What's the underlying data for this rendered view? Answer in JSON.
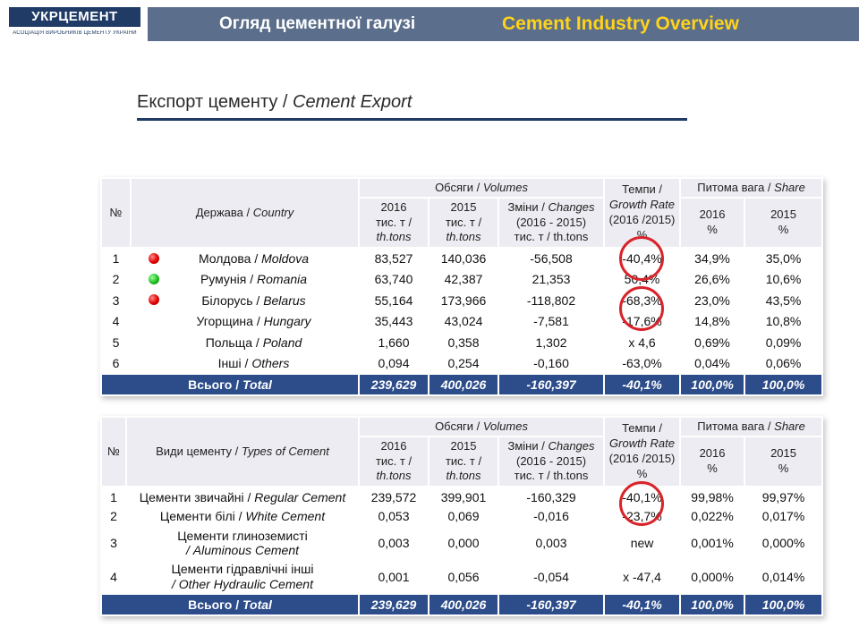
{
  "header": {
    "logo_title": "УКРЦЕМЕНТ",
    "logo_subtitle": "АСОЦІАЦІЯ ВИРОБНИКІВ ЦЕМЕНТУ УКРАЇНИ",
    "title_ua": "Огляд цементної галузі",
    "title_en": "Cement Industry Overview",
    "title_en_color": "#ffd31a"
  },
  "section": {
    "title_ua": "Експорт цементу / ",
    "title_en": "Cement Export"
  },
  "common": {
    "no": "№",
    "volumes_ua": "Обсяги / ",
    "volumes_en": "Volumes",
    "y2016": "2016",
    "y2015": "2015",
    "unit_ua": "тис. т /",
    "unit_en": "th.tons",
    "changes_ua": "Зміни / ",
    "changes_en": "Changes",
    "changes_period": "(2016 - 2015)",
    "changes_unit": "тис. т / th.tons",
    "rate_ua": "Темпи /",
    "rate_en": "Growth Rate",
    "rate_period": "(2016 /2015)",
    "pct": "%",
    "share_ua": "Питома вага / ",
    "share_en": "Share",
    "y2016_pct": "2016",
    "y2015_pct": "2015"
  },
  "table1": {
    "col_label_ua": "Держава / ",
    "col_label_en": "Country",
    "rows": [
      {
        "n": "1",
        "ua": "Молдова / ",
        "en": "Moldova",
        "v2016": "83,527",
        "v2015": "140,036",
        "chg": "-56,508",
        "rate": "-40,4%",
        "s2016": "34,9%",
        "s2015": "35,0%",
        "dot": "red"
      },
      {
        "n": "2",
        "ua": "Румунія / ",
        "en": "Romania",
        "v2016": "63,740",
        "v2015": "42,387",
        "chg": "21,353",
        "rate": "50,4%",
        "s2016": "26,6%",
        "s2015": "10,6%",
        "dot": "green"
      },
      {
        "n": "3",
        "ua": "Білорусь / ",
        "en": "Belarus",
        "v2016": "55,164",
        "v2015": "173,966",
        "chg": "-118,802",
        "rate": "-68,3%",
        "s2016": "23,0%",
        "s2015": "43,5%",
        "dot": "red"
      },
      {
        "n": "4",
        "ua": "Угорщина / ",
        "en": "Hungary",
        "v2016": "35,443",
        "v2015": "43,024",
        "chg": "-7,581",
        "rate": "-17,6%",
        "s2016": "14,8%",
        "s2015": "10,8%",
        "dot": ""
      },
      {
        "n": "5",
        "ua": "Польща / ",
        "en": "Poland",
        "v2016": "1,660",
        "v2015": "0,358",
        "chg": "1,302",
        "rate": "x 4,6",
        "s2016": "0,69%",
        "s2015": "0,09%",
        "dot": ""
      },
      {
        "n": "6",
        "ua": "Інші / ",
        "en": "Others",
        "v2016": "0,094",
        "v2015": "0,254",
        "chg": "-0,160",
        "rate": "-63,0%",
        "s2016": "0,04%",
        "s2015": "0,06%",
        "dot": ""
      }
    ],
    "total": {
      "ua": "Всього / ",
      "en": "Total",
      "v2016": "239,629",
      "v2015": "400,026",
      "chg": "-160,397",
      "rate": "-40,1%",
      "s2016": "100,0%",
      "s2015": "100,0%"
    }
  },
  "table2": {
    "col_label_ua": "Види цементу / ",
    "col_label_en": "Types of Cement",
    "rows": [
      {
        "n": "1",
        "ua": "Цементи звичайні / ",
        "en": "Regular Cement",
        "v2016": "239,572",
        "v2015": "399,901",
        "chg": "-160,329",
        "rate": "-40,1%",
        "s2016": "99,98%",
        "s2015": "99,97%"
      },
      {
        "n": "2",
        "ua": "Цементи білі / ",
        "en": "White Cement",
        "v2016": "0,053",
        "v2015": "0,069",
        "chg": "-0,016",
        "rate": "-23,7%",
        "s2016": "0,022%",
        "s2015": "0,017%"
      },
      {
        "n": "3",
        "ua": "Цементи глиноземисті",
        "en": "/ Aluminous Cement",
        "v2016": "0,003",
        "v2015": "0,000",
        "chg": "0,003",
        "rate": "new",
        "s2016": "0,001%",
        "s2015": "0,000%"
      },
      {
        "n": "4",
        "ua": "Цементи гідравлічні інші",
        "en": "/ Other Hydraulic Cement",
        "v2016": "0,001",
        "v2015": "0,056",
        "chg": "-0,054",
        "rate": "x -47,4",
        "s2016": "0,000%",
        "s2015": "0,014%"
      }
    ],
    "total": {
      "ua": "Всього / ",
      "en": "Total",
      "v2016": "239,629",
      "v2015": "400,026",
      "chg": "-160,397",
      "rate": "-40,1%",
      "s2016": "100,0%",
      "s2015": "100,0%"
    }
  }
}
